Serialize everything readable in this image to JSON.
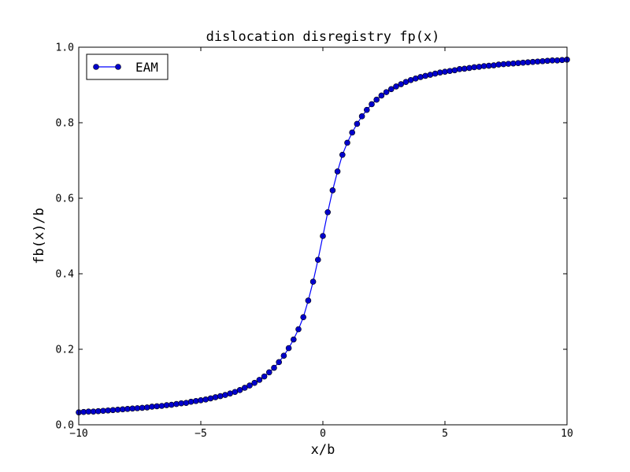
{
  "chart_data": {
    "type": "line",
    "title": "dislocation disregistry fp(x)",
    "xlabel": "x/b",
    "ylabel": "fb(x)/b",
    "xlim": [
      -10,
      10
    ],
    "ylim": [
      0.0,
      1.0
    ],
    "xticks": [
      "−10",
      "−5",
      "0",
      "5",
      "10"
    ],
    "xtick_values": [
      -10,
      -5,
      0,
      5,
      10
    ],
    "yticks": [
      "0.0",
      "0.2",
      "0.4",
      "0.6",
      "0.8",
      "1.0"
    ],
    "ytick_values": [
      0.0,
      0.2,
      0.4,
      0.6,
      0.8,
      1.0
    ],
    "grid": false,
    "legend_position": "top-left",
    "series": [
      {
        "name": "EAM",
        "color": "#0000ff",
        "marker_color": "#0000cc",
        "marker": "circle",
        "x": [
          -10.0,
          -9.8,
          -9.6,
          -9.4,
          -9.2,
          -9.0,
          -8.8,
          -8.6,
          -8.4,
          -8.2,
          -8.0,
          -7.8,
          -7.6,
          -7.4,
          -7.2,
          -7.0,
          -6.8,
          -6.6,
          -6.4,
          -6.2,
          -6.0,
          -5.8,
          -5.6,
          -5.4,
          -5.2,
          -5.0,
          -4.8,
          -4.6,
          -4.4,
          -4.2,
          -4.0,
          -3.8,
          -3.6,
          -3.4,
          -3.2,
          -3.0,
          -2.8,
          -2.6,
          -2.4,
          -2.2,
          -2.0,
          -1.8,
          -1.6,
          -1.4,
          -1.2,
          -1.0,
          -0.8,
          -0.6,
          -0.4,
          -0.2,
          0.0,
          0.2,
          0.4,
          0.6,
          0.8,
          1.0,
          1.2,
          1.4,
          1.6,
          1.8,
          2.0,
          2.2,
          2.4,
          2.6,
          2.8,
          3.0,
          3.2,
          3.4,
          3.6,
          3.8,
          4.0,
          4.2,
          4.4,
          4.6,
          4.8,
          5.0,
          5.2,
          5.4,
          5.6,
          5.8,
          6.0,
          6.2,
          6.4,
          6.6,
          6.8,
          7.0,
          7.2,
          7.4,
          7.6,
          7.8,
          8.0,
          8.2,
          8.4,
          8.6,
          8.8,
          9.0,
          9.2,
          9.4,
          9.6,
          9.8,
          10.0
        ],
        "y": [
          0.033,
          0.034,
          0.035,
          0.035,
          0.036,
          0.037,
          0.038,
          0.039,
          0.04,
          0.041,
          0.042,
          0.043,
          0.044,
          0.045,
          0.046,
          0.048,
          0.049,
          0.05,
          0.052,
          0.053,
          0.055,
          0.057,
          0.058,
          0.061,
          0.063,
          0.065,
          0.067,
          0.07,
          0.073,
          0.076,
          0.079,
          0.083,
          0.087,
          0.092,
          0.098,
          0.104,
          0.111,
          0.119,
          0.128,
          0.139,
          0.151,
          0.166,
          0.183,
          0.203,
          0.226,
          0.253,
          0.285,
          0.329,
          0.379,
          0.437,
          0.5,
          0.563,
          0.621,
          0.671,
          0.715,
          0.747,
          0.774,
          0.797,
          0.817,
          0.834,
          0.849,
          0.861,
          0.872,
          0.881,
          0.889,
          0.896,
          0.902,
          0.908,
          0.913,
          0.917,
          0.921,
          0.924,
          0.927,
          0.93,
          0.933,
          0.935,
          0.937,
          0.939,
          0.942,
          0.943,
          0.945,
          0.947,
          0.948,
          0.95,
          0.951,
          0.952,
          0.954,
          0.955,
          0.956,
          0.957,
          0.958,
          0.959,
          0.96,
          0.961,
          0.962,
          0.963,
          0.964,
          0.965,
          0.965,
          0.966,
          0.967
        ]
      }
    ]
  }
}
